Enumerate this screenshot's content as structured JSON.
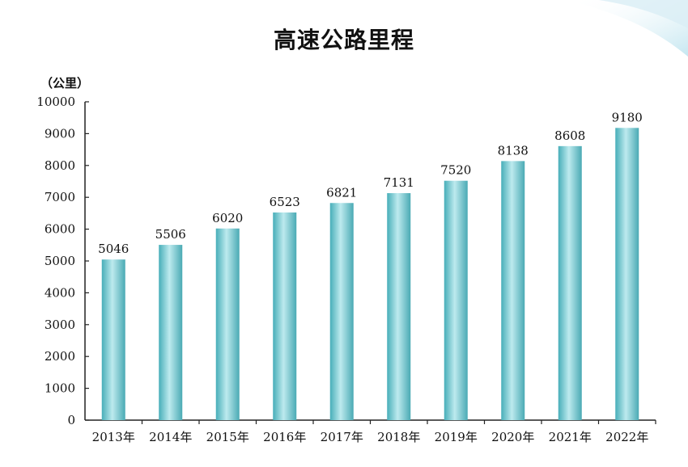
{
  "chart_data": {
    "type": "bar",
    "title": "高速公路里程",
    "unit_label": "（公里）",
    "categories": [
      "2013年",
      "2014年",
      "2015年",
      "2016年",
      "2017年",
      "2018年",
      "2019年",
      "2020年",
      "2021年",
      "2022年"
    ],
    "values": [
      5046,
      5506,
      6020,
      6523,
      6821,
      7131,
      7520,
      8138,
      8608,
      9180
    ],
    "ylim": [
      0,
      10000
    ],
    "yticks": [
      0,
      1000,
      2000,
      3000,
      4000,
      5000,
      6000,
      7000,
      8000,
      9000,
      10000
    ],
    "grid": false,
    "bar_color": "#5bbfc8",
    "bar_highlight": "#c9eef1"
  }
}
